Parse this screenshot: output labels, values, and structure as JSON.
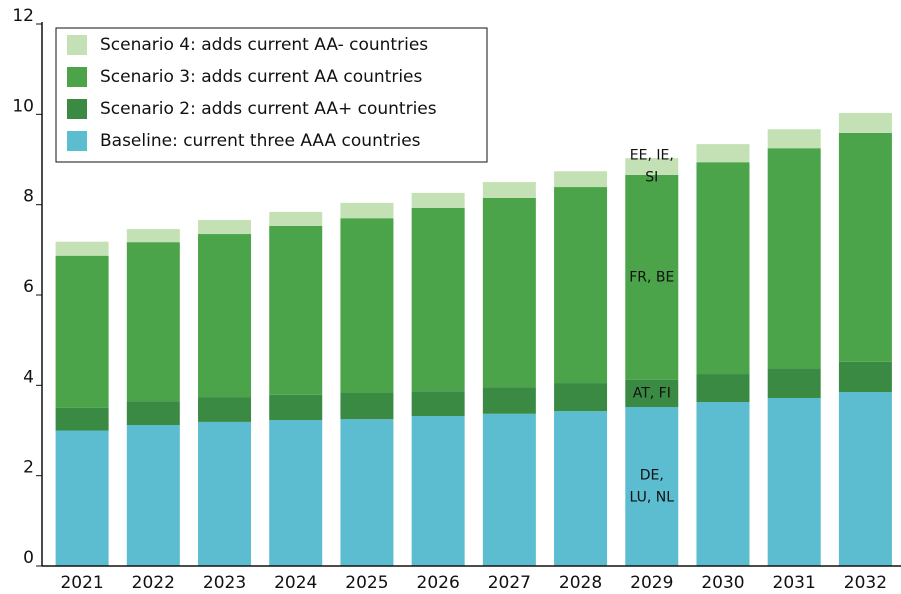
{
  "chart_data": {
    "type": "stacked_bar",
    "categories": [
      "2021",
      "2022",
      "2023",
      "2024",
      "2025",
      "2026",
      "2027",
      "2028",
      "2029",
      "2030",
      "2031",
      "2032"
    ],
    "series": [
      {
        "name": "Baseline: current three AAA countries",
        "color": "#5cbcd0",
        "values": [
          3.0,
          3.12,
          3.19,
          3.23,
          3.25,
          3.32,
          3.37,
          3.43,
          3.52,
          3.63,
          3.72,
          3.85
        ],
        "annotation": [
          "DE,",
          "LU, NL"
        ]
      },
      {
        "name": "Scenario 2: adds current AA+ countries",
        "color": "#3a8a44",
        "values": [
          0.5,
          0.53,
          0.55,
          0.56,
          0.58,
          0.55,
          0.59,
          0.62,
          0.6,
          0.62,
          0.66,
          0.67
        ],
        "annotation": [
          "AT, FI"
        ]
      },
      {
        "name": "Scenario 3: adds current AA countries",
        "color": "#4ba449",
        "values": [
          3.37,
          3.52,
          3.61,
          3.74,
          3.87,
          4.06,
          4.19,
          4.34,
          4.54,
          4.69,
          4.87,
          5.07
        ],
        "annotation": [
          "FR, BE"
        ]
      },
      {
        "name": "Scenario 4: adds current AA- countries",
        "color": "#c4e1b5",
        "values": [
          0.31,
          0.29,
          0.31,
          0.31,
          0.34,
          0.33,
          0.35,
          0.35,
          0.37,
          0.4,
          0.42,
          0.44
        ],
        "annotation": [
          "EE, IE,",
          "SI"
        ]
      }
    ],
    "ylim": [
      0,
      12
    ],
    "yticks": [
      0,
      2,
      4,
      6,
      8,
      10,
      12
    ],
    "legend": "upper left"
  }
}
